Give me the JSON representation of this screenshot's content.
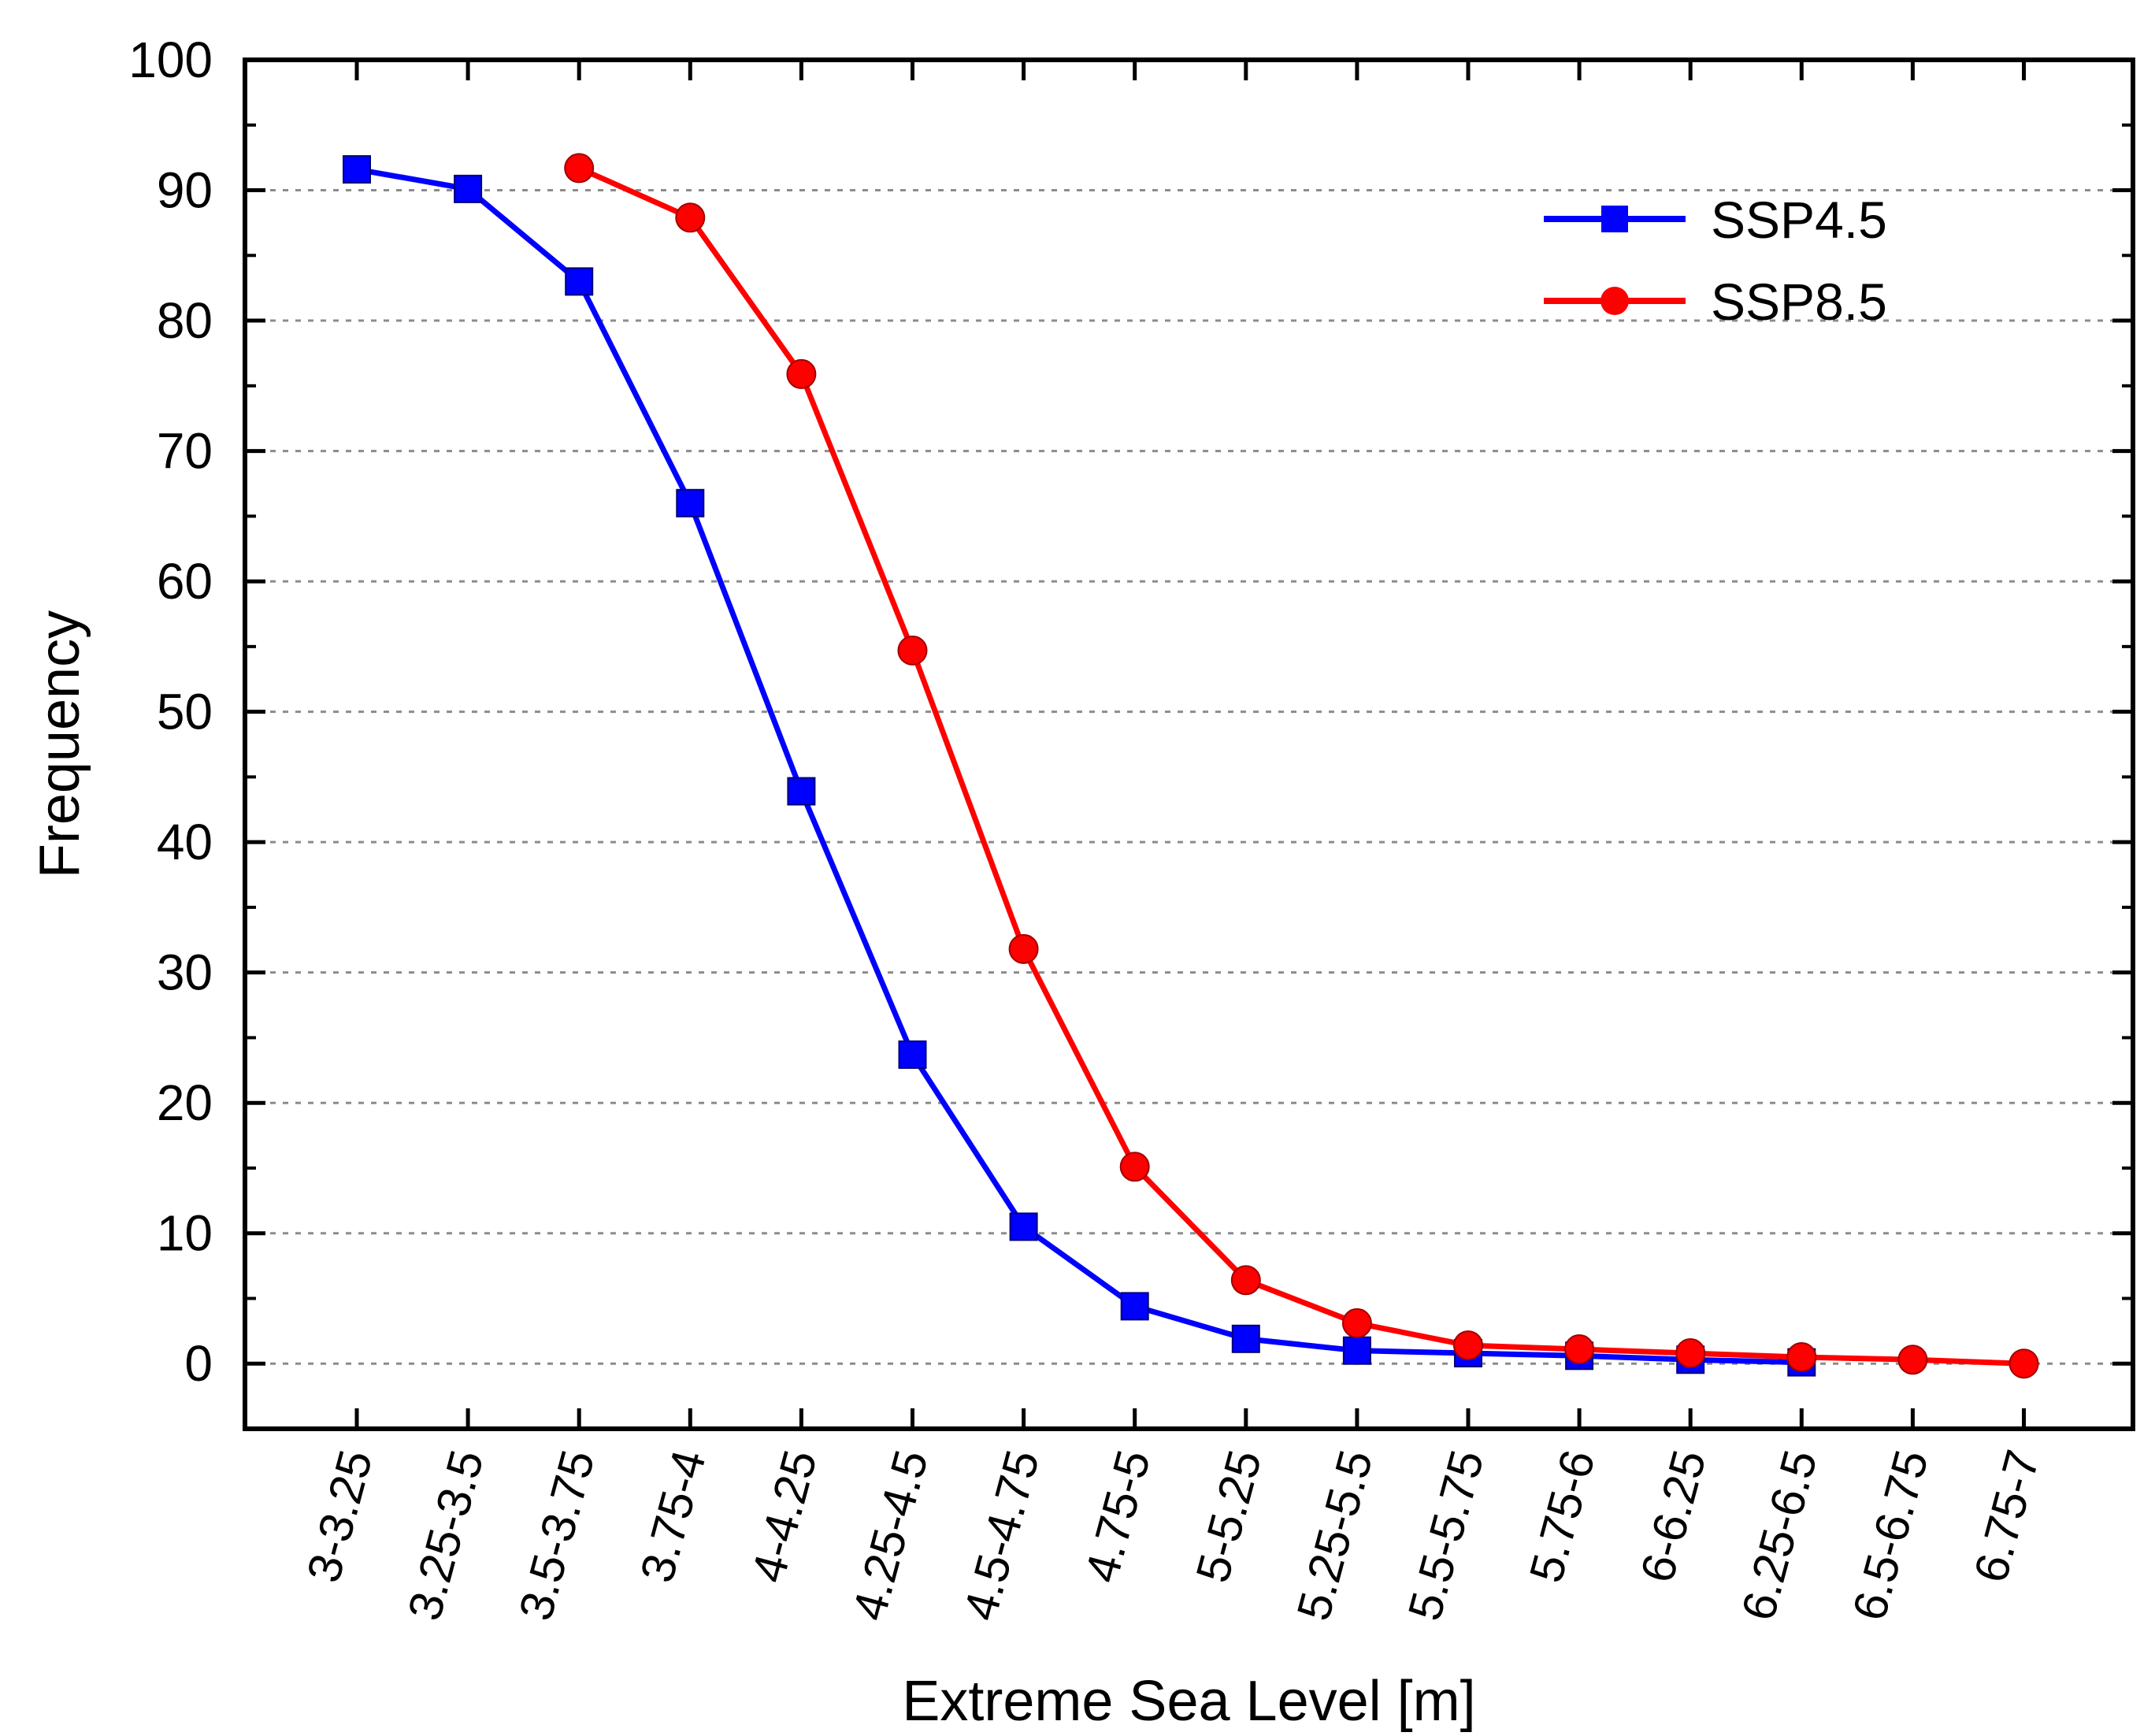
{
  "chart_data": {
    "type": "line",
    "title": "",
    "xlabel": "Extreme Sea Level [m]",
    "ylabel": "Frequency",
    "ylim": [
      -5,
      100
    ],
    "yticks": [
      0,
      10,
      20,
      30,
      40,
      50,
      60,
      70,
      80,
      90,
      100
    ],
    "grid": "horizontal dotted",
    "legend_position": "top-right",
    "categories": [
      "3-3.25",
      "3.25-3.5",
      "3.5-3.75",
      "3.75-4",
      "4-4.25",
      "4.25-4.5",
      "4.5-4.75",
      "4.75-5",
      "5-5.25",
      "5.25-5.5",
      "5.5-5.75",
      "5.75-6",
      "6-6.25",
      "6.25-6.5",
      "6.5-6.75",
      "6.75-7"
    ],
    "series": [
      {
        "name": "SSP4.5",
        "color": "#0000ff",
        "marker": "square",
        "values": [
          91.6,
          90.1,
          83.0,
          66.0,
          43.9,
          23.7,
          10.5,
          4.4,
          1.9,
          1.0,
          0.8,
          0.6,
          0.3,
          0.1,
          null,
          null
        ]
      },
      {
        "name": "SSP8.5",
        "color": "#ff0000",
        "marker": "circle",
        "values": [
          null,
          null,
          91.7,
          87.9,
          75.9,
          54.7,
          31.8,
          15.1,
          6.4,
          3.1,
          1.4,
          1.1,
          0.8,
          0.5,
          0.3,
          0.0
        ]
      }
    ]
  }
}
